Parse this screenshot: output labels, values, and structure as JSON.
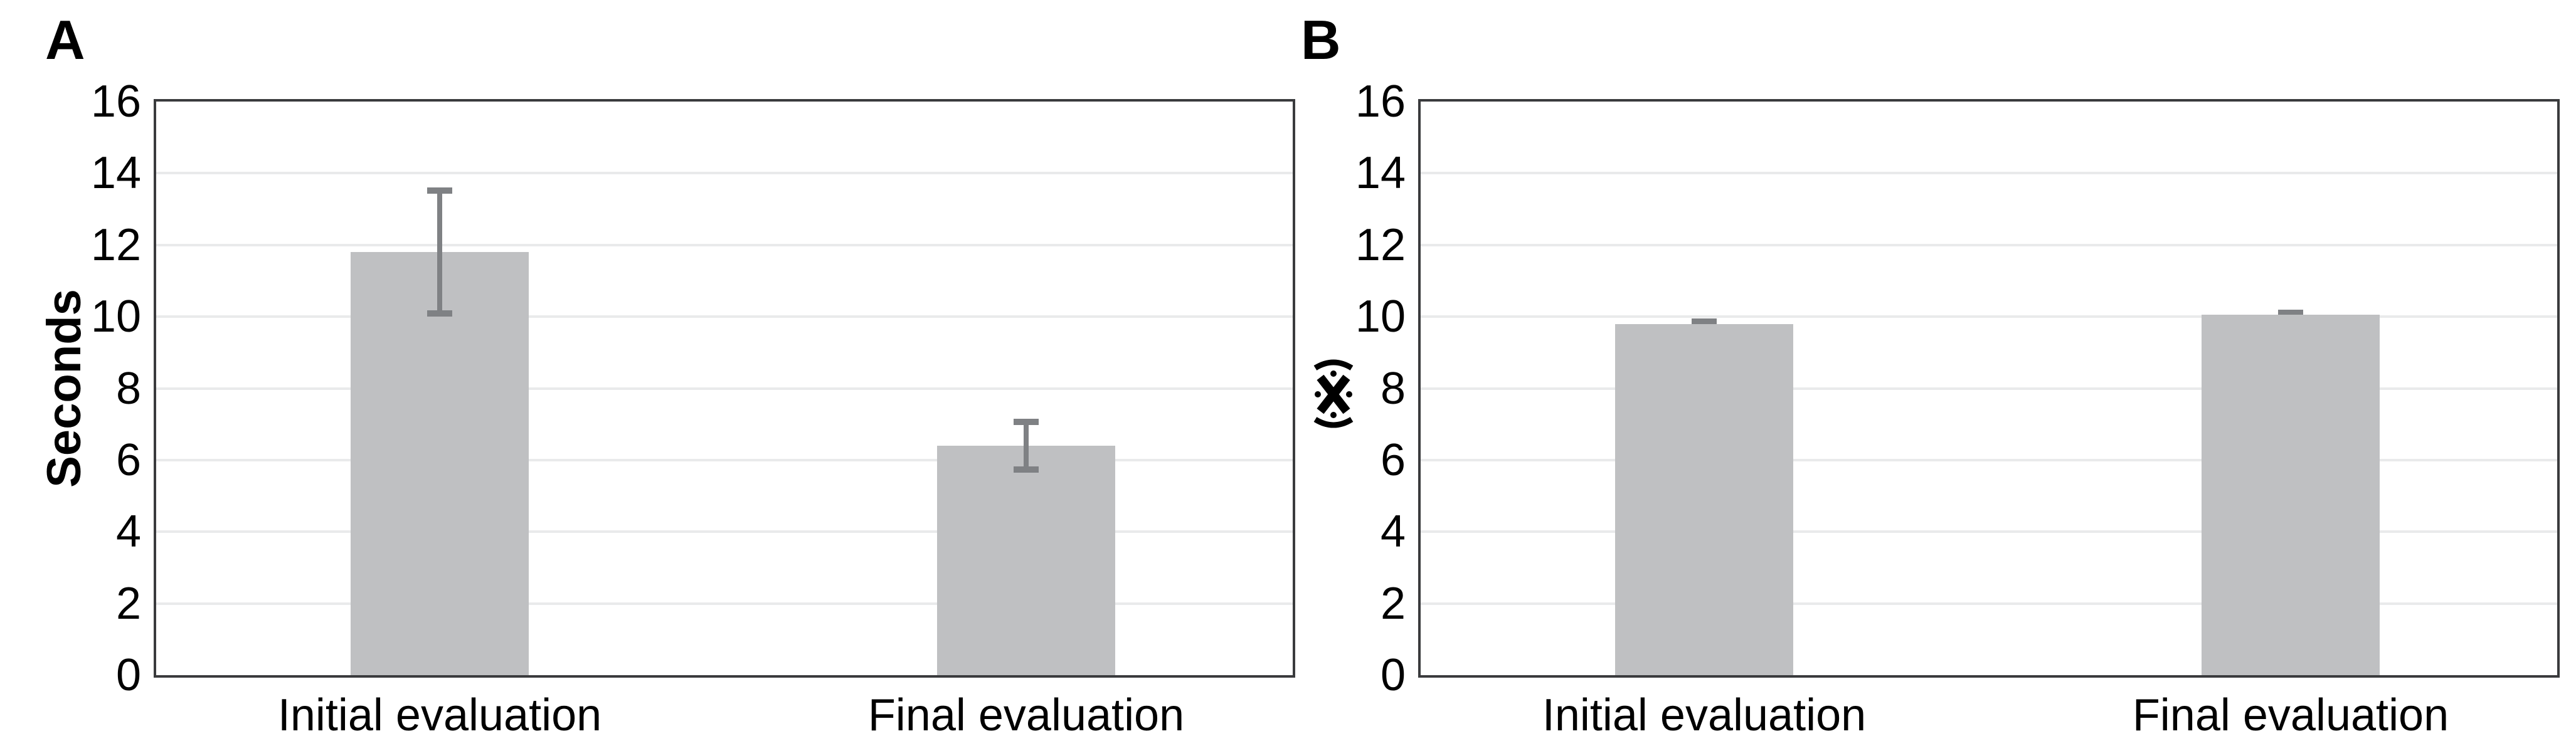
{
  "figure": {
    "panel_labels": [
      "A",
      "B"
    ]
  },
  "chart_data": [
    {
      "type": "bar",
      "panel": "A",
      "title": "",
      "xlabel": "",
      "ylabel": "Seconds",
      "categories": [
        "Initial evaluation",
        "Final evaluation"
      ],
      "values": [
        11.8,
        6.4
      ],
      "error_low": [
        10.0,
        5.65
      ],
      "error_high": [
        13.6,
        7.15
      ],
      "ylim": [
        0,
        16
      ],
      "yticks": [
        0,
        2,
        4,
        6,
        8,
        10,
        12,
        14,
        16
      ],
      "grid": true,
      "legend": "none",
      "bar_color": "#bfc0c2",
      "error_color": "#7f8184",
      "grid_color": "#e9eaeb",
      "error_bars_in_front": true
    },
    {
      "type": "bar",
      "panel": "B",
      "title": "",
      "xlabel": "",
      "ylabel": "(✳)",
      "categories": [
        "Initial evaluation",
        "Final evaluation"
      ],
      "values": [
        9.8,
        10.05
      ],
      "error_low": [
        9.65,
        9.9
      ],
      "error_high": [
        9.95,
        10.2
      ],
      "ylim": [
        0,
        16
      ],
      "yticks": [
        0,
        2,
        4,
        6,
        8,
        10,
        12,
        14,
        16
      ],
      "grid": true,
      "legend": "none",
      "bar_color": "#bfc0c2",
      "error_color": "#7f8184",
      "grid_color": "#e9eaeb",
      "error_bars_in_front": false
    }
  ]
}
